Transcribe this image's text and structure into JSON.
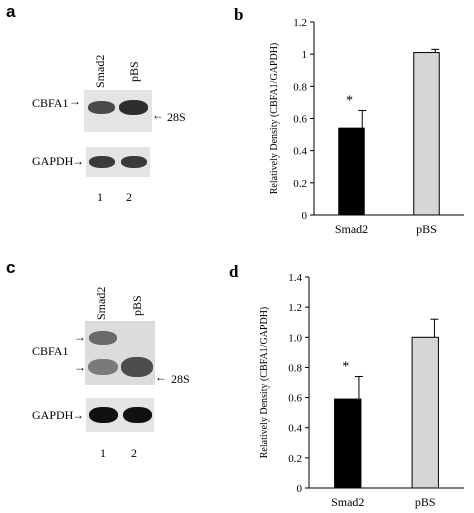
{
  "panels": {
    "a": {
      "label": "a",
      "lanes": [
        "Smad2",
        "pBS"
      ],
      "rows": [
        "CBFA1",
        "GAPDH"
      ],
      "marker": "28S",
      "lane_numbers": [
        "1",
        "2"
      ]
    },
    "c": {
      "label": "c",
      "lanes": [
        "Smad2",
        "pBS"
      ],
      "rows": [
        "CBFA1",
        "GAPDH"
      ],
      "marker": "28S",
      "lane_numbers": [
        "1",
        "2"
      ]
    }
  },
  "chart_data": [
    {
      "panel_label": "b",
      "type": "bar",
      "categories": [
        "Smad2",
        "pBS"
      ],
      "values": [
        0.54,
        1.01
      ],
      "errors": [
        0.11,
        0.02
      ],
      "annotations": [
        "*",
        ""
      ],
      "ylabel": "Relatively Density (CBFA1/GAPDH)",
      "ylim": [
        0,
        1.2
      ],
      "yticks": [
        "0",
        "0.2",
        "0.4",
        "0.6",
        "0.8",
        "1",
        "1.2"
      ],
      "bar_colors": [
        "#000000",
        "#d6d6d6"
      ]
    },
    {
      "panel_label": "d",
      "type": "bar",
      "categories": [
        "Smad2",
        "pBS"
      ],
      "values": [
        0.59,
        1.0
      ],
      "errors": [
        0.15,
        0.12
      ],
      "annotations": [
        "*",
        ""
      ],
      "ylabel": "Relatively Density (CBFA1/GAPDH)",
      "ylim": [
        0,
        1.4
      ],
      "yticks": [
        "0",
        "0.2",
        "0.4",
        "0.6",
        "0.8",
        "1.0",
        "1.2",
        "1.4"
      ],
      "bar_colors": [
        "#000000",
        "#d6d6d6"
      ]
    }
  ]
}
